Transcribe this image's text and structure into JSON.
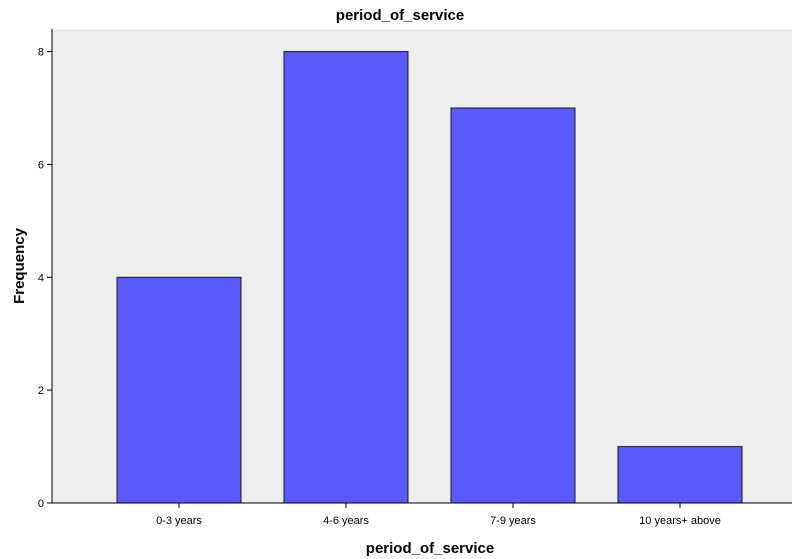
{
  "chart_data": {
    "type": "bar",
    "title": "period_of_service",
    "xlabel": "period_of_service",
    "ylabel": "Frequency",
    "categories": [
      "0-3 years",
      "4-6 years",
      "7-9 years",
      "10 years+ above"
    ],
    "values": [
      4,
      8,
      7,
      1
    ],
    "ylim": [
      0,
      8.4
    ],
    "yticks": [
      "0",
      "2",
      "4",
      "6",
      "8"
    ],
    "grid": false,
    "legend": "none",
    "colors": {
      "bar_fill": "#5a5aff",
      "bar_stroke": "#1a1a1a",
      "plot_background": "#eeeeee",
      "axis": "#000000"
    }
  }
}
